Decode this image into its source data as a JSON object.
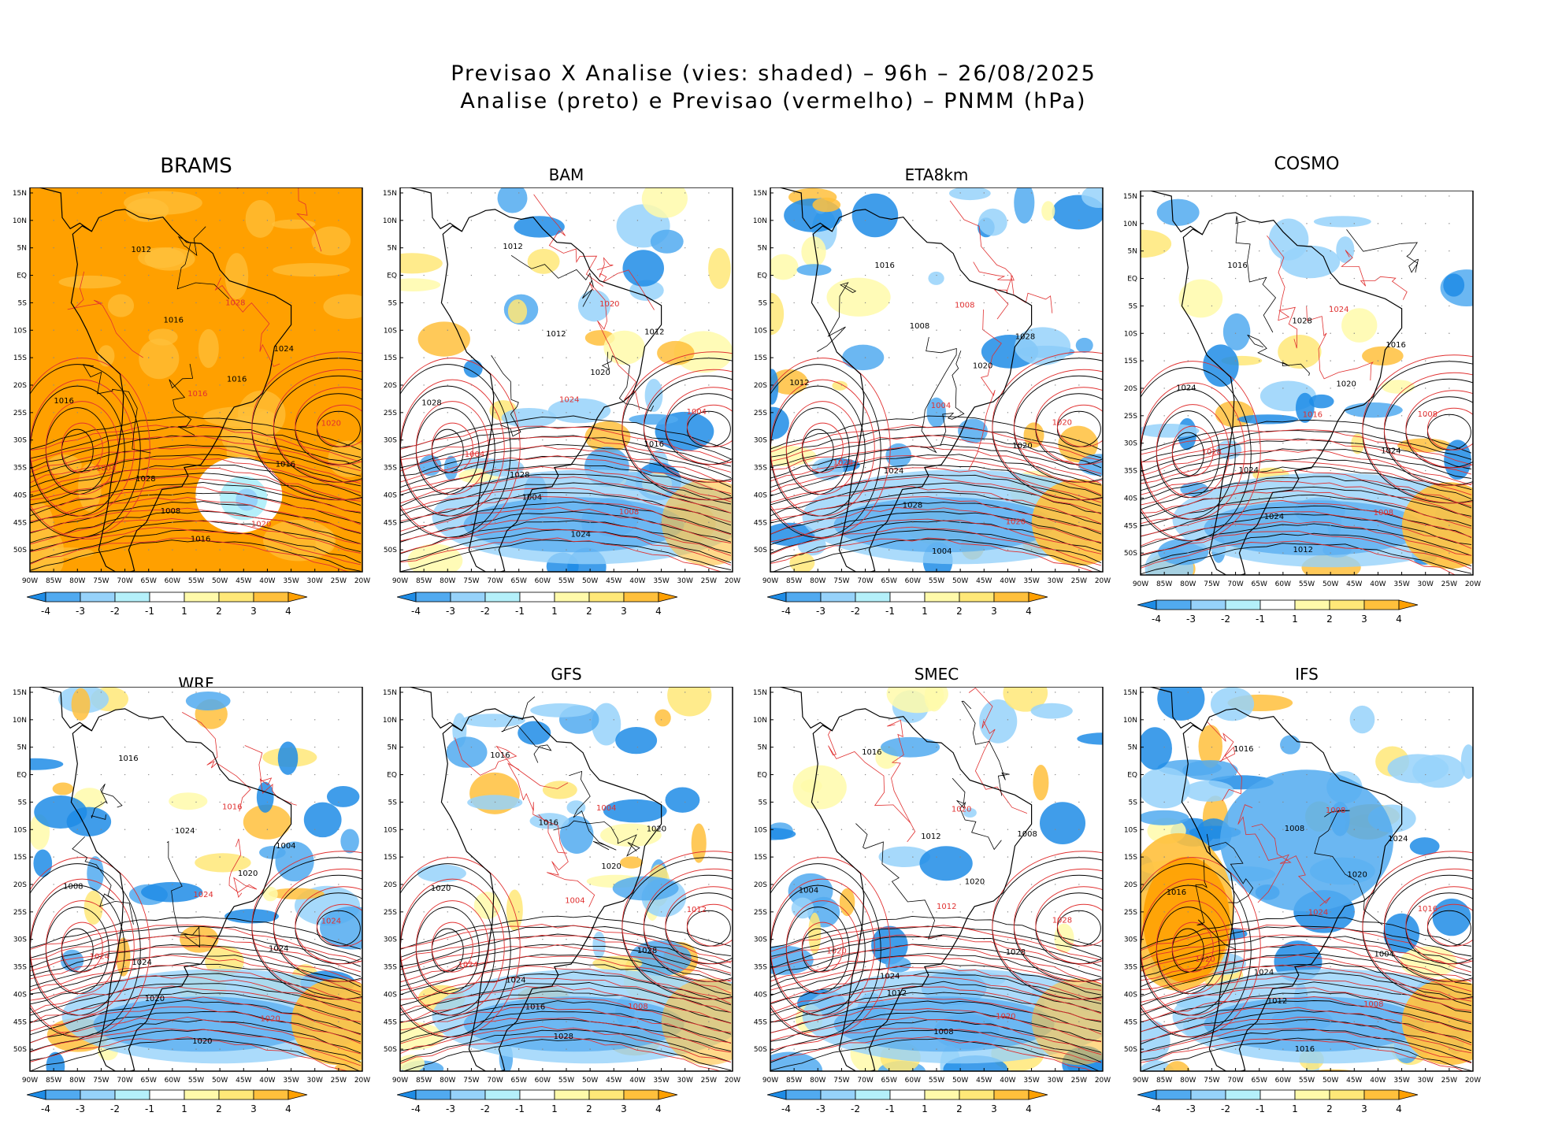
{
  "header": {
    "line1": "Previsao X Analise (vies: shaded) – 96h – 26/08/2025",
    "line2": "Analise (preto) e Previsao (vermelho) – PNMM (hPa)"
  },
  "lat_labels": [
    "15N",
    "10N",
    "5N",
    "EQ",
    "5S",
    "10S",
    "15S",
    "20S",
    "25S",
    "30S",
    "35S",
    "40S",
    "45S",
    "50S"
  ],
  "lon_labels": [
    "90W",
    "85W",
    "80W",
    "75W",
    "70W",
    "65W",
    "60W",
    "55W",
    "50W",
    "45W",
    "40W",
    "35W",
    "30W",
    "25W",
    "20W"
  ],
  "colorbar": {
    "ticks": [
      "-4",
      "-3",
      "-2",
      "-1",
      "1",
      "2",
      "3",
      "4"
    ],
    "colors": [
      "#1e8ce6",
      "#51aaf0",
      "#96d2fa",
      "#b4f0fa",
      "#ffffff",
      "#fffaaa",
      "#ffe878",
      "#ffc03c",
      "#ffa000"
    ]
  },
  "panels": [
    {
      "title": "BRAMS",
      "bias": "warm_all"
    },
    {
      "title": "BAM",
      "bias": "cool"
    },
    {
      "title": "ETA8km",
      "bias": "mixed"
    },
    {
      "title": "COSMO",
      "bias": "mixed"
    },
    {
      "title": "WRF",
      "bias": "mixed"
    },
    {
      "title": "GFS",
      "bias": "cool"
    },
    {
      "title": "SMEC",
      "bias": "cool"
    },
    {
      "title": "IFS",
      "bias": "strong"
    }
  ],
  "contour_labels": {
    "black": [
      "1012",
      "1016",
      "1020",
      "1024",
      "1028",
      "1004",
      "1008"
    ],
    "red": [
      "1012",
      "1016",
      "1020",
      "1024",
      "1028",
      "1004",
      "1008"
    ]
  }
}
